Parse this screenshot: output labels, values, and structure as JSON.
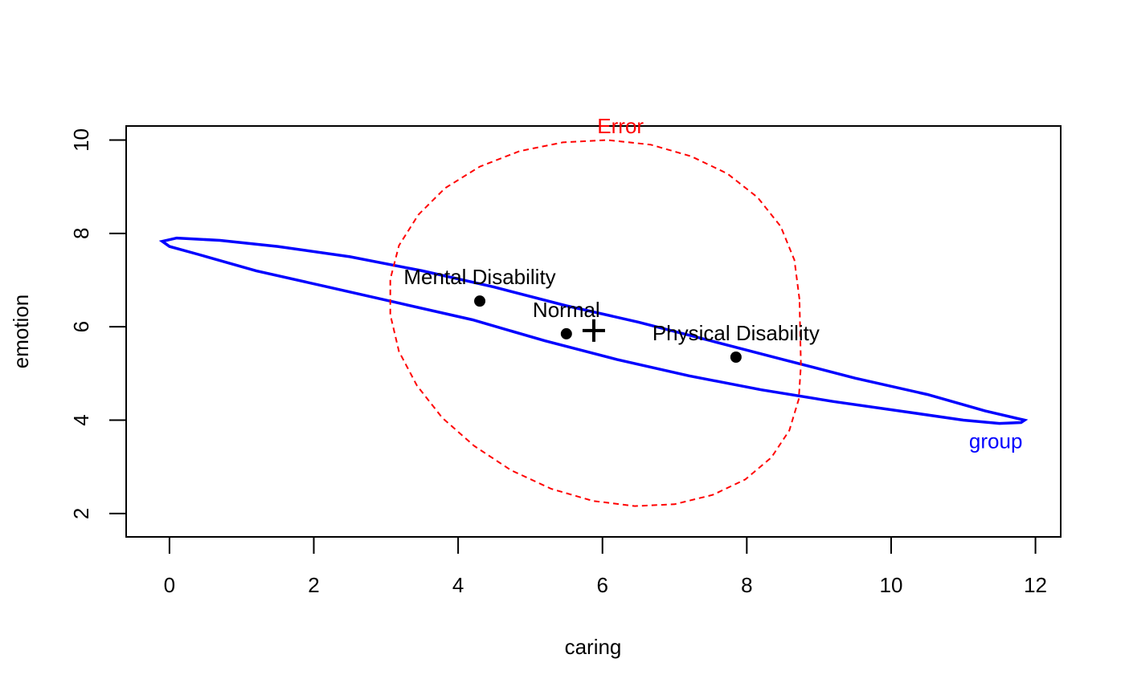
{
  "chart_data": {
    "type": "scatter",
    "title": "",
    "xlabel": "caring",
    "ylabel": "emotion",
    "xlim": [
      -0.6,
      12.35
    ],
    "ylim": [
      1.5,
      10.3
    ],
    "xticks": [
      0,
      2,
      4,
      6,
      8,
      10,
      12
    ],
    "yticks": [
      2,
      4,
      6,
      8,
      10
    ],
    "grid": false,
    "points": [
      {
        "label": "Mental Disability",
        "x": 4.3,
        "y": 6.55
      },
      {
        "label": "Normal",
        "x": 5.5,
        "y": 5.85
      },
      {
        "label": "Physical Disability",
        "x": 7.85,
        "y": 5.35
      }
    ],
    "grand_mean": {
      "x": 5.88,
      "y": 5.92,
      "marker": "plus"
    },
    "ellipses": [
      {
        "label": "group",
        "color": "#0000ff",
        "line": "solid",
        "points": [
          [
            11.85,
            4.0
          ],
          [
            11.3,
            4.2
          ],
          [
            10.5,
            4.55
          ],
          [
            9.5,
            4.9
          ],
          [
            8.5,
            5.3
          ],
          [
            7.5,
            5.7
          ],
          [
            6.5,
            6.1
          ],
          [
            5.5,
            6.45
          ],
          [
            4.5,
            6.85
          ],
          [
            3.5,
            7.2
          ],
          [
            2.5,
            7.5
          ],
          [
            1.5,
            7.72
          ],
          [
            0.7,
            7.85
          ],
          [
            0.1,
            7.9
          ],
          [
            -0.1,
            7.83
          ],
          [
            0.0,
            7.72
          ],
          [
            0.4,
            7.55
          ],
          [
            1.2,
            7.2
          ],
          [
            2.2,
            6.85
          ],
          [
            3.2,
            6.5
          ],
          [
            4.2,
            6.15
          ],
          [
            5.2,
            5.7
          ],
          [
            6.2,
            5.3
          ],
          [
            7.2,
            4.95
          ],
          [
            8.2,
            4.65
          ],
          [
            9.2,
            4.4
          ],
          [
            10.2,
            4.18
          ],
          [
            11.0,
            4.0
          ],
          [
            11.5,
            3.93
          ],
          [
            11.8,
            3.95
          ],
          [
            11.85,
            4.0
          ]
        ]
      },
      {
        "label": "Error",
        "color": "#ff0000",
        "line": "dashed",
        "points": [
          [
            8.73,
            6.59
          ],
          [
            8.66,
            7.43
          ],
          [
            8.47,
            8.15
          ],
          [
            8.15,
            8.77
          ],
          [
            7.73,
            9.28
          ],
          [
            7.23,
            9.65
          ],
          [
            6.67,
            9.9
          ],
          [
            6.07,
            10.0
          ],
          [
            5.45,
            9.95
          ],
          [
            4.85,
            9.76
          ],
          [
            4.3,
            9.43
          ],
          [
            3.82,
            8.97
          ],
          [
            3.45,
            8.4
          ],
          [
            3.18,
            7.74
          ],
          [
            3.06,
            7.02
          ],
          [
            3.06,
            6.26
          ],
          [
            3.18,
            5.47
          ],
          [
            3.43,
            4.74
          ],
          [
            3.78,
            4.05
          ],
          [
            4.22,
            3.45
          ],
          [
            4.73,
            2.93
          ],
          [
            5.29,
            2.53
          ],
          [
            5.87,
            2.27
          ],
          [
            6.45,
            2.16
          ],
          [
            7.0,
            2.2
          ],
          [
            7.53,
            2.4
          ],
          [
            7.98,
            2.73
          ],
          [
            8.34,
            3.2
          ],
          [
            8.59,
            3.78
          ],
          [
            8.72,
            4.45
          ],
          [
            8.75,
            5.18
          ],
          [
            8.73,
            6.59
          ]
        ]
      }
    ]
  }
}
